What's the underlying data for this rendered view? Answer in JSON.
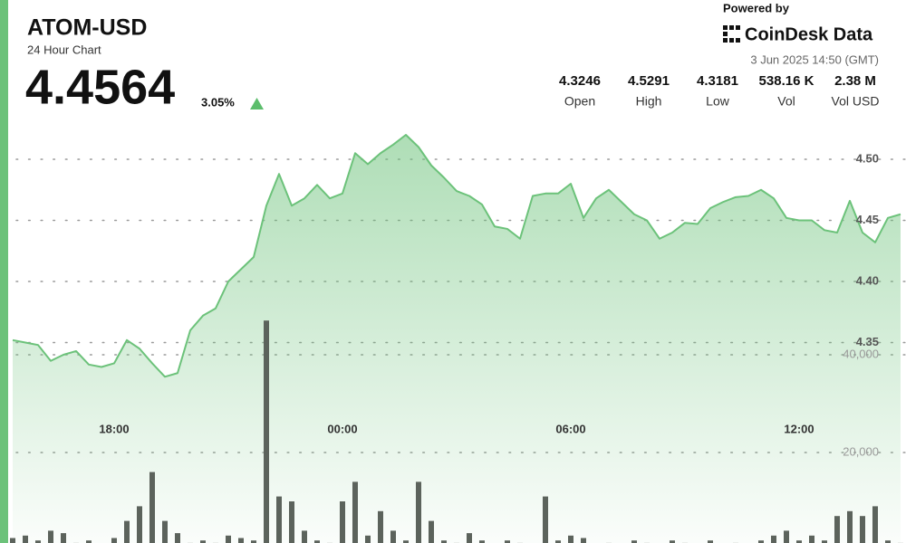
{
  "header": {
    "symbol": "ATOM-USD",
    "subtitle": "24 Hour Chart",
    "price": "4.4564",
    "change": "3.05%",
    "powered_by": "Powered by",
    "brand": "CoinDesk Data",
    "timestamp": "3 Jun 2025 14:50 (GMT)",
    "stats": [
      {
        "value": "4.3246",
        "label": "Open"
      },
      {
        "value": "4.5291",
        "label": "High"
      },
      {
        "value": "4.3181",
        "label": "Low"
      },
      {
        "value": "538.16 K",
        "label": "Vol"
      },
      {
        "value": "2.38 M",
        "label": "Vol USD"
      }
    ]
  },
  "chart_data": {
    "type": "line",
    "categories": [
      null,
      null,
      null,
      null,
      null,
      null,
      null,
      null,
      "18:00",
      null,
      null,
      null,
      null,
      null,
      null,
      null,
      null,
      null,
      null,
      null,
      null,
      null,
      null,
      null,
      null,
      null,
      "00:00",
      null,
      null,
      null,
      null,
      null,
      null,
      null,
      null,
      null,
      null,
      null,
      null,
      null,
      null,
      null,
      null,
      null,
      "06:00",
      null,
      null,
      null,
      null,
      null,
      null,
      null,
      null,
      null,
      null,
      null,
      null,
      null,
      null,
      null,
      null,
      null,
      "12:00",
      null,
      null,
      null,
      null,
      null,
      null,
      null,
      null
    ],
    "values": [
      4.352,
      4.35,
      4.348,
      4.335,
      4.34,
      4.343,
      4.332,
      4.33,
      4.333,
      4.352,
      4.345,
      4.333,
      4.322,
      4.325,
      4.36,
      4.372,
      4.378,
      4.4,
      4.41,
      4.42,
      4.462,
      4.488,
      4.462,
      4.468,
      4.479,
      4.468,
      4.472,
      4.505,
      4.496,
      4.505,
      4.512,
      4.52,
      4.51,
      4.495,
      4.485,
      4.474,
      4.47,
      4.463,
      4.445,
      4.443,
      4.435,
      4.47,
      4.472,
      4.472,
      4.48,
      4.452,
      4.468,
      4.475,
      4.465,
      4.455,
      4.45,
      4.435,
      4.44,
      4.448,
      4.447,
      4.46,
      4.465,
      4.469,
      4.47,
      4.475,
      4.468,
      4.452,
      4.45,
      4.45,
      4.442,
      4.44,
      4.466,
      4.44,
      4.432,
      4.452,
      4.455
    ],
    "color": "#6cc27a",
    "ylim": [
      4.2,
      4.55
    ],
    "yticks": [
      4.35,
      {
        "value": 4.4,
        "label": "4.40"
      },
      4.45,
      {
        "value": 4.5,
        "label": "4.50"
      }
    ],
    "volume_values": [
      2500,
      3000,
      2000,
      4000,
      3500,
      1500,
      2000,
      1000,
      2500,
      6000,
      9000,
      16000,
      6000,
      3500,
      1500,
      2000,
      1500,
      3000,
      2500,
      2000,
      47000,
      11000,
      10000,
      4000,
      2000,
      1500,
      10000,
      14000,
      3000,
      8000,
      4000,
      2000,
      14000,
      6000,
      2000,
      1500,
      3500,
      2000,
      1000,
      2000,
      1500,
      1000,
      11000,
      2000,
      3000,
      2500,
      1000,
      1500,
      1000,
      2000,
      1500,
      1000,
      2000,
      1500,
      1000,
      2000,
      1000,
      1500,
      1000,
      2000,
      3000,
      4000,
      2000,
      3000,
      2000,
      7000,
      8000,
      7000,
      9000,
      2000,
      1500
    ],
    "volume_color": "#5c635c",
    "y2lim": [
      0,
      100000
    ],
    "y2ticks": [
      {
        "value": 20000,
        "label": "20,000"
      },
      {
        "value": 40000,
        "label": "40,000"
      }
    ],
    "grid": true
  }
}
